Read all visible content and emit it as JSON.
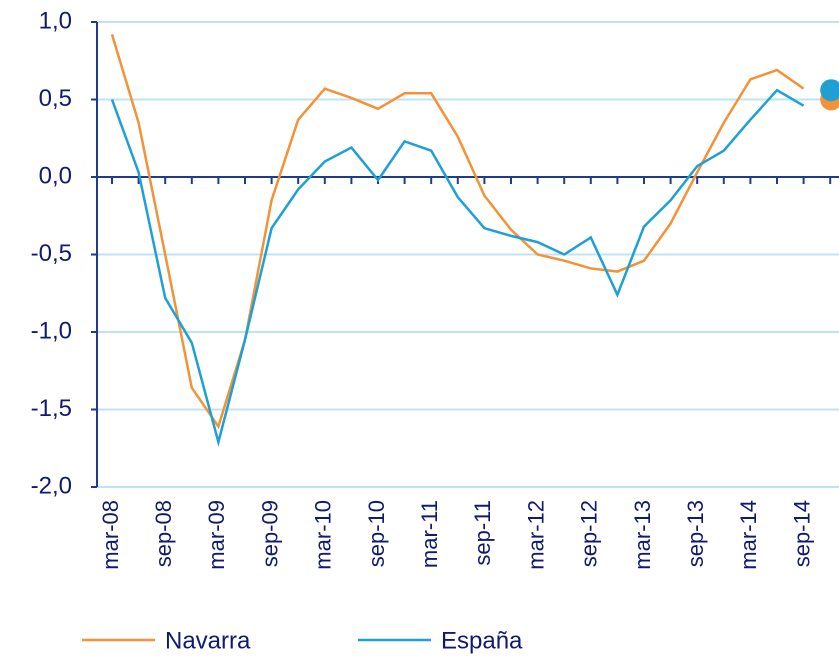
{
  "chart_data": {
    "type": "line",
    "categories": [
      "mar-08",
      null,
      "sep-08",
      null,
      "mar-09",
      null,
      "sep-09",
      null,
      "mar-10",
      null,
      "sep-10",
      null,
      "mar-11",
      null,
      "sep-11",
      null,
      "mar-12",
      null,
      "sep-12",
      null,
      "mar-13",
      null,
      "sep-13",
      null,
      "mar-14",
      null,
      "sep-14",
      null
    ],
    "series": [
      {
        "name": "Navarra",
        "color": "#f39237",
        "values": [
          0.92,
          0.35,
          -0.5,
          -1.36,
          -1.61,
          -1.05,
          -0.15,
          0.37,
          0.57,
          0.51,
          0.44,
          0.54,
          0.54,
          0.26,
          -0.12,
          -0.34,
          -0.5,
          -0.54,
          -0.59,
          -0.61,
          -0.54,
          -0.3,
          0.03,
          0.35,
          0.63,
          0.69,
          0.57,
          null
        ],
        "forecast": 0.5
      },
      {
        "name": "España",
        "color": "#1ea0d5",
        "values": [
          0.5,
          0.03,
          -0.78,
          -1.07,
          -1.71,
          -1.05,
          -0.33,
          -0.08,
          0.1,
          0.19,
          -0.02,
          0.23,
          0.17,
          -0.13,
          -0.33,
          -0.38,
          -0.42,
          -0.5,
          -0.39,
          -0.76,
          -0.32,
          -0.15,
          0.07,
          0.17,
          0.37,
          0.56,
          0.46,
          null
        ],
        "forecast": 0.56
      }
    ],
    "ylim": [
      -2,
      1
    ],
    "yticks": [
      {
        "value": -2,
        "label": "-2,0"
      },
      {
        "value": -1.5,
        "label": "-1,5"
      },
      {
        "value": -1,
        "label": "-1,0"
      },
      {
        "value": -0.5,
        "label": "-0,5"
      },
      {
        "value": 0,
        "label": "0,0"
      },
      {
        "value": 0.5,
        "label": "0,5"
      },
      {
        "value": 1,
        "label": "1,0"
      }
    ],
    "grid": true,
    "legend": "bottom"
  }
}
